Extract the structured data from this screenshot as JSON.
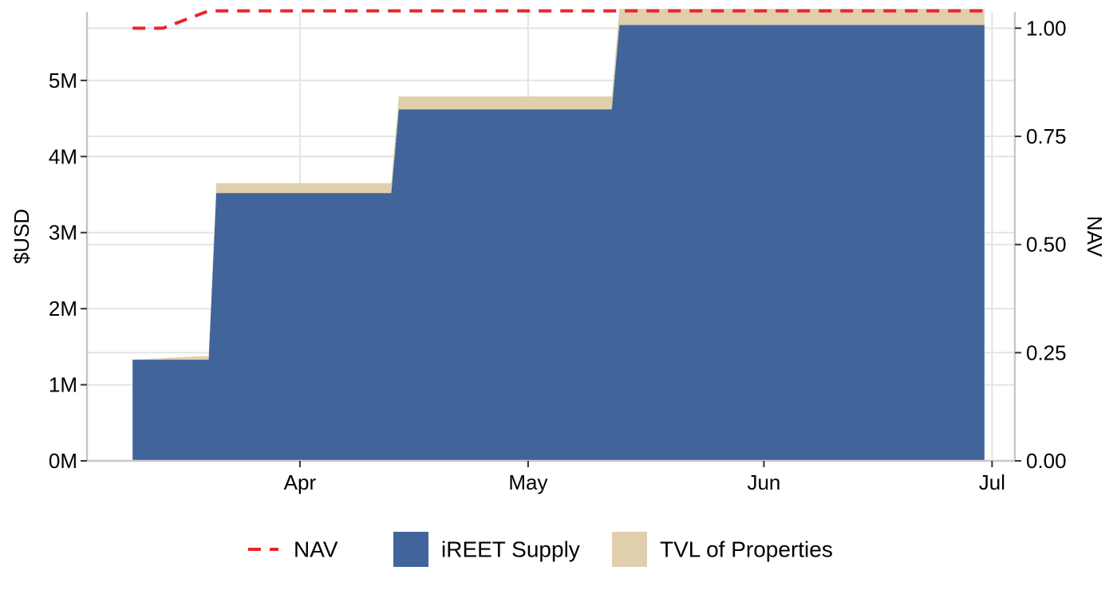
{
  "chart_data": {
    "type": "area",
    "y_axis_left": {
      "label": "$USD",
      "range": [
        0,
        5900000
      ],
      "ticks": [
        0,
        1000000,
        2000000,
        3000000,
        4000000,
        5000000
      ],
      "tick_labels": [
        "0M",
        "1M",
        "2M",
        "3M",
        "4M",
        "5M"
      ]
    },
    "y_axis_right": {
      "label": "NAV",
      "range": [
        0,
        1.0375
      ],
      "ticks": [
        0,
        0.25,
        0.5,
        0.75,
        1.0
      ],
      "tick_labels": [
        "0.00",
        "0.25",
        "0.50",
        "0.75",
        "1.00"
      ]
    },
    "x_axis": {
      "range": [
        "2023-03-04",
        "2023-07-04"
      ],
      "ticks": [
        "2023-04-01",
        "2023-05-01",
        "2023-06-01",
        "2023-07-01"
      ],
      "tick_labels": [
        "Apr",
        "May",
        "Jun",
        "Jul"
      ]
    },
    "grid": true,
    "legend_position": "bottom",
    "series": [
      {
        "name": "iREET Supply",
        "kind": "area",
        "color": "#41649a",
        "points": [
          {
            "x": "2023-03-10",
            "y": 1330000
          },
          {
            "x": "2023-03-20",
            "y": 1330000
          },
          {
            "x": "2023-03-21",
            "y": 3520000
          },
          {
            "x": "2023-04-13",
            "y": 3520000
          },
          {
            "x": "2023-04-14",
            "y": 4620000
          },
          {
            "x": "2023-05-12",
            "y": 4620000
          },
          {
            "x": "2023-05-13",
            "y": 5730000
          },
          {
            "x": "2023-06-30",
            "y": 5730000
          }
        ]
      },
      {
        "name": "TVL of Properties",
        "kind": "area",
        "color": "#dfcfac",
        "stacked_on": "iREET Supply",
        "points": [
          {
            "x": "2023-03-10",
            "y": 0
          },
          {
            "x": "2023-03-20",
            "y": 50000
          },
          {
            "x": "2023-03-21",
            "y": 130000
          },
          {
            "x": "2023-04-13",
            "y": 130000
          },
          {
            "x": "2023-04-14",
            "y": 170000
          },
          {
            "x": "2023-05-12",
            "y": 170000
          },
          {
            "x": "2023-05-13",
            "y": 210000
          },
          {
            "x": "2023-06-30",
            "y": 210000
          }
        ]
      },
      {
        "name": "NAV",
        "kind": "line",
        "axis": "right",
        "color": "#e8262b",
        "dash": "dashed",
        "points": [
          {
            "x": "2023-03-10",
            "y": 1.0
          },
          {
            "x": "2023-03-14",
            "y": 1.0
          },
          {
            "x": "2023-03-20",
            "y": 1.04
          },
          {
            "x": "2023-06-30",
            "y": 1.04
          }
        ]
      }
    ],
    "legend": [
      {
        "label": "NAV",
        "swatch": "dashed-line",
        "color": "#e8262b"
      },
      {
        "label": "iREET Supply",
        "swatch": "box",
        "color": "#41649a"
      },
      {
        "label": "TVL of Properties",
        "swatch": "box",
        "color": "#dfcfac"
      }
    ]
  }
}
